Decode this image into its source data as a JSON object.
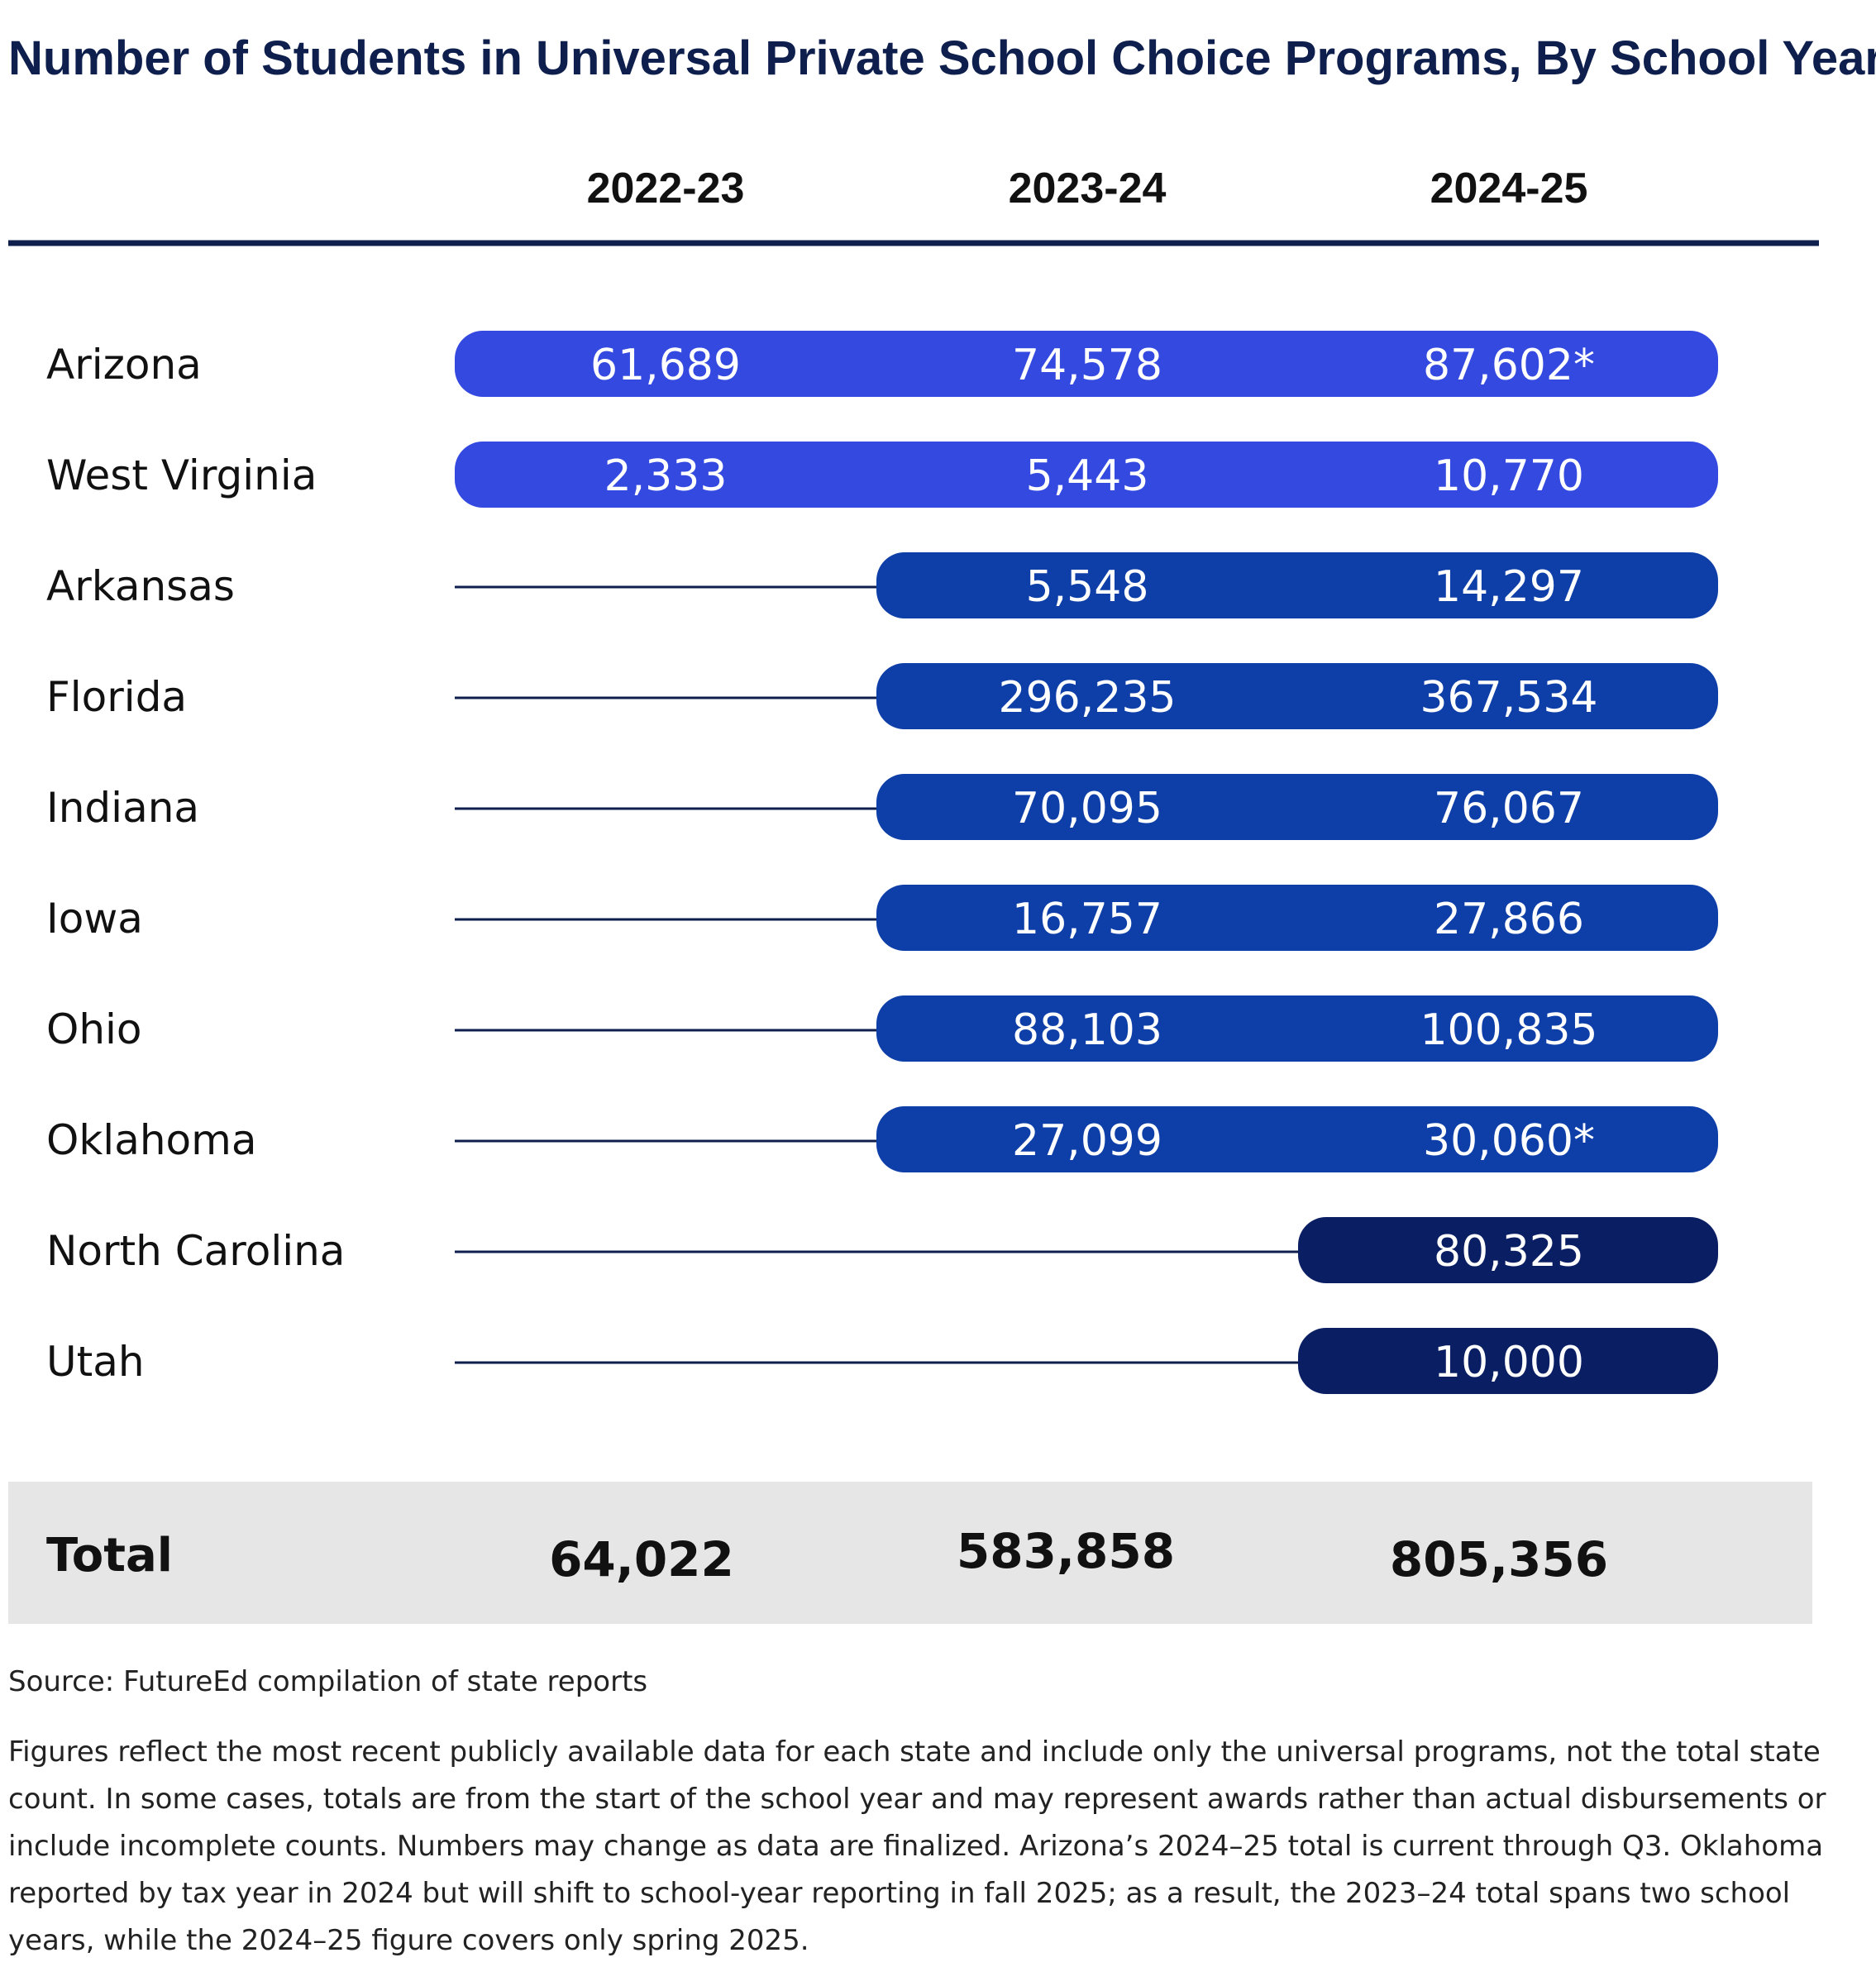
{
  "chart_data": {
    "type": "table",
    "title": "Number of Students in Universal Private School Choice Programs, By School Year",
    "columns": [
      "2022-23",
      "2023-24",
      "2024-25"
    ],
    "rows": [
      {
        "state": "Arizona",
        "values": [
          "61,689",
          "74,578",
          "87,602*"
        ],
        "start": 0,
        "color": "#3349e0"
      },
      {
        "state": "West Virginia",
        "values": [
          "2,333",
          "5,443",
          "10,770"
        ],
        "start": 0,
        "color": "#3349e0"
      },
      {
        "state": "Arkansas",
        "values": [
          null,
          "5,548",
          "14,297"
        ],
        "start": 1,
        "color": "#0e3fa8"
      },
      {
        "state": "Florida",
        "values": [
          null,
          "296,235",
          "367,534"
        ],
        "start": 1,
        "color": "#0e3fa8"
      },
      {
        "state": "Indiana",
        "values": [
          null,
          "70,095",
          "76,067"
        ],
        "start": 1,
        "color": "#0e3fa8"
      },
      {
        "state": "Iowa",
        "values": [
          null,
          "16,757",
          "27,866"
        ],
        "start": 1,
        "color": "#0e3fa8"
      },
      {
        "state": "Ohio",
        "values": [
          null,
          "88,103",
          "100,835"
        ],
        "start": 1,
        "color": "#0e3fa8"
      },
      {
        "state": "Oklahoma",
        "values": [
          null,
          "27,099",
          "30,060*"
        ],
        "start": 1,
        "color": "#0e3fa8"
      },
      {
        "state": "North Carolina",
        "values": [
          null,
          null,
          "80,325"
        ],
        "start": 2,
        "color": "#0a1f63"
      },
      {
        "state": "Utah",
        "values": [
          null,
          null,
          "10,000"
        ],
        "start": 2,
        "color": "#0a1f63"
      }
    ],
    "total": {
      "label": "Total",
      "values": [
        "64,022",
        "583,858",
        "805,356"
      ]
    },
    "source": "Source: FutureEd compilation of state reports",
    "note_lines": [
      "Figures reflect the most recent publicly available data for each state and include only the universal programs, not the total state",
      "count. In some cases, totals are from the start of the school year and may represent awards rather than actual disbursements or",
      "include incomplete counts. Numbers may change as data are finalized. Arizona’s 2024–25 total is current through Q3. Oklahoma",
      "reported by tax year in 2024 but will shift to school-year reporting in fall 2025; as a result, the 2023–24 total spans two school",
      "years, while the 2024–25 figure covers only spring 2025."
    ],
    "colors": {
      "title": "#0e1f4d",
      "rule": "#0e1f4d",
      "connector": "#0e1f4d",
      "total_band": "#e6e6e6"
    }
  }
}
